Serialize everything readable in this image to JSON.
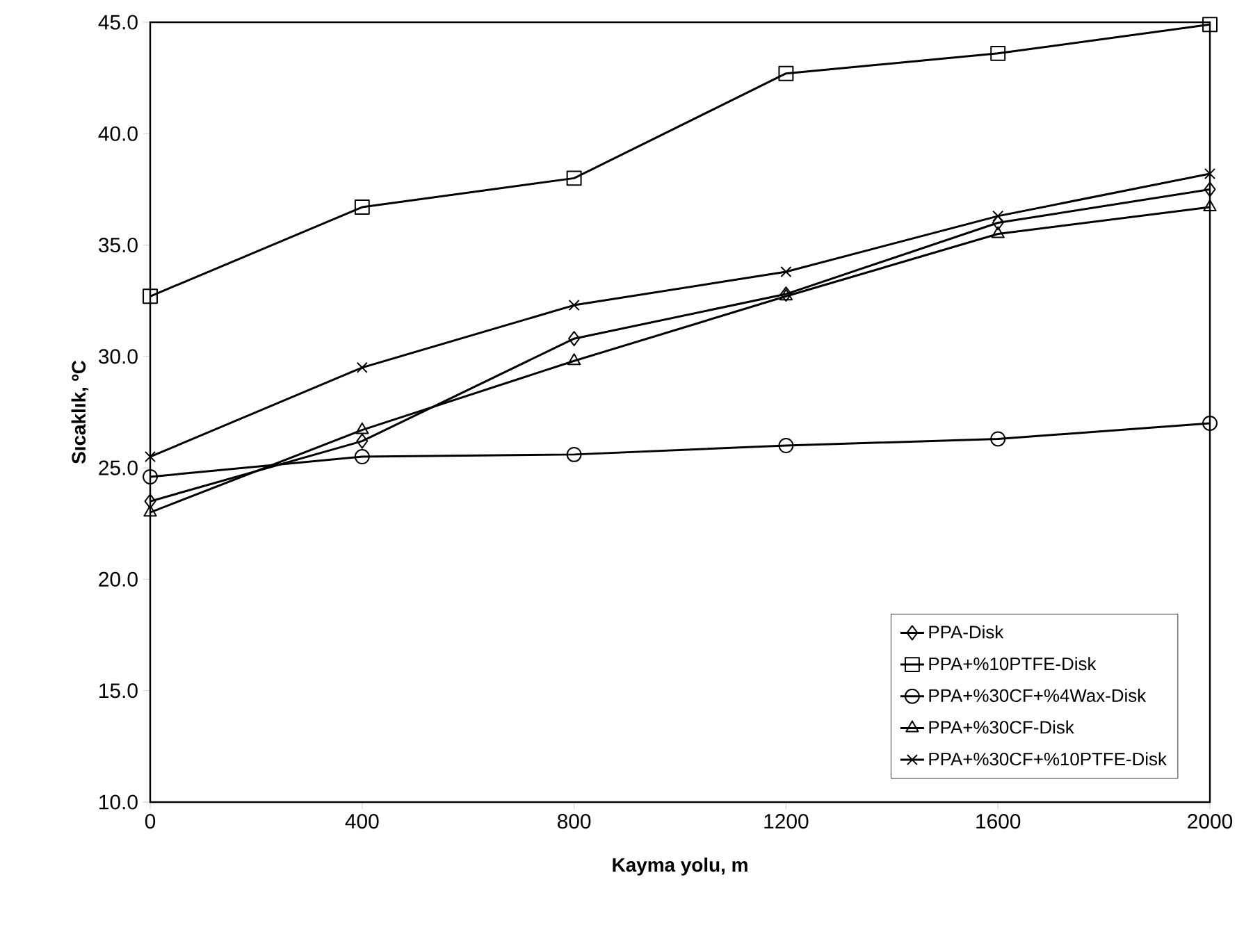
{
  "chart_data": {
    "type": "line",
    "xlabel": "Kayma yolu, m",
    "ylabel": "Sıcaklık, ºC",
    "x": [
      0,
      400,
      800,
      1200,
      1600,
      2000
    ],
    "series": [
      {
        "name": "PPA-Disk",
        "color": "#000000",
        "marker": "diamond",
        "values": [
          23.5,
          26.2,
          30.8,
          32.8,
          36.0,
          37.5
        ]
      },
      {
        "name": "PPA+%10PTFE-Disk",
        "color": "#000000",
        "marker": "square",
        "values": [
          32.7,
          36.7,
          38.0,
          42.7,
          43.6,
          44.9
        ]
      },
      {
        "name": "PPA+%30CF+%4Wax-Disk",
        "color": "#000000",
        "marker": "circle",
        "values": [
          24.6,
          25.5,
          25.6,
          26.0,
          26.3,
          27.0
        ]
      },
      {
        "name": "PPA+%30CF-Disk",
        "color": "#000000",
        "marker": "triangle",
        "values": [
          23.0,
          26.7,
          29.8,
          32.7,
          35.5,
          36.7
        ]
      },
      {
        "name": "PPA+%30CF+%10PTFE-Disk",
        "color": "#000000",
        "marker": "cross",
        "values": [
          25.5,
          29.5,
          32.3,
          33.8,
          36.3,
          38.2
        ]
      }
    ],
    "xlim": [
      0,
      2000
    ],
    "xticks": [
      0,
      400,
      800,
      1200,
      1600,
      2000
    ],
    "ylim": [
      10,
      45
    ],
    "yticks": [
      {
        "value": 10,
        "label": "10.0"
      },
      {
        "value": 15,
        "label": "15.0"
      },
      {
        "value": 20,
        "label": "20.0"
      },
      {
        "value": 25,
        "label": "25.0"
      },
      {
        "value": 30,
        "label": "30.0"
      },
      {
        "value": 35,
        "label": "35.0"
      },
      {
        "value": 40,
        "label": "40.0"
      },
      {
        "value": 45,
        "label": "45.0"
      }
    ],
    "grid": false,
    "legend": "bottom right",
    "line_style": "solid"
  }
}
